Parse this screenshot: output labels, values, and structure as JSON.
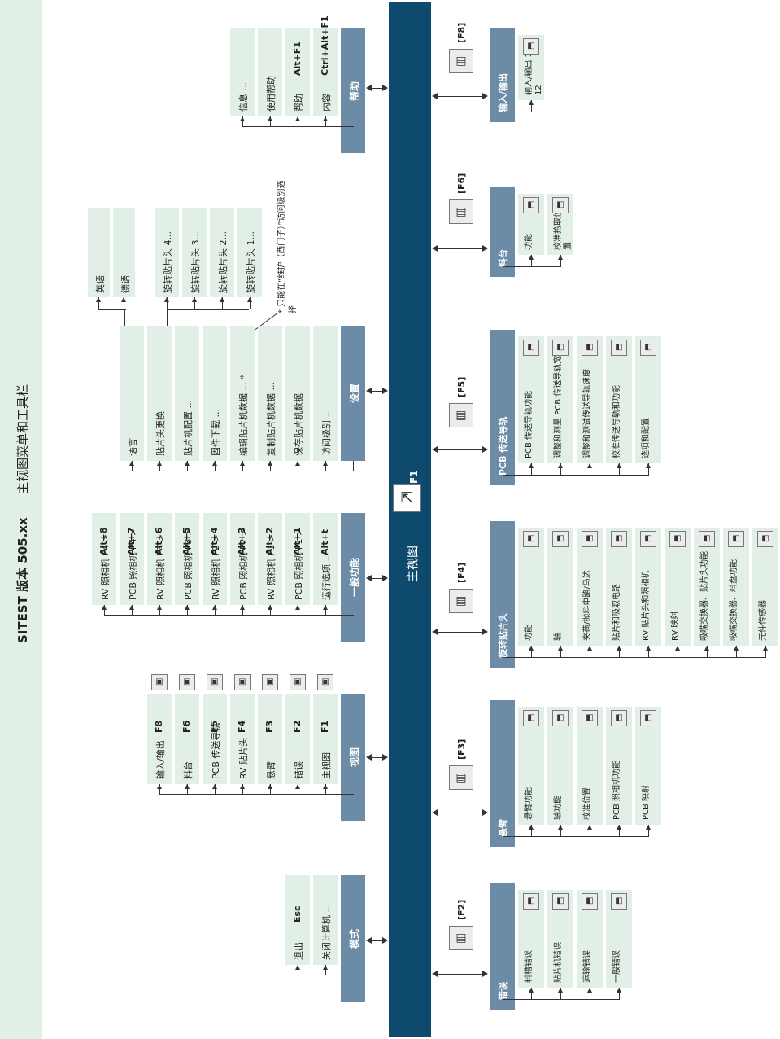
{
  "title": {
    "product": "SITEST 版本 505.xx",
    "subtitle": "主视图菜单和工具栏"
  },
  "main_view": {
    "label": "主视图",
    "key": "F1"
  },
  "menus": {
    "mode": {
      "header": "模式",
      "items": [
        {
          "label": "退出",
          "shortcut": "Esc"
        },
        {
          "label": "关闭计算机 ...",
          "shortcut": ""
        }
      ]
    },
    "view": {
      "header": "视图",
      "items": [
        {
          "label": "输入/输出",
          "shortcut": "F8",
          "icon": "io-icon"
        },
        {
          "label": "料台",
          "shortcut": "F6",
          "icon": "feeder-table-icon"
        },
        {
          "label": "PCB 传送导轨",
          "shortcut": "F5",
          "icon": "conveyor-icon"
        },
        {
          "label": "RV 贴片头",
          "shortcut": "F4",
          "icon": "placement-head-icon"
        },
        {
          "label": "悬臂",
          "shortcut": "F3",
          "icon": "gantry-icon"
        },
        {
          "label": "错误",
          "shortcut": "F2",
          "icon": "error-icon"
        },
        {
          "label": "主视图",
          "shortcut": "F1",
          "icon": "main-view-icon"
        }
      ]
    },
    "general": {
      "header": "一般功能",
      "items": [
        {
          "label": "RV 照相机 P4 >",
          "shortcut": "Alt+8"
        },
        {
          "label": "PCB 照相机 P4 >",
          "shortcut": "Alt+7"
        },
        {
          "label": "RV 照相机 P3 >",
          "shortcut": "Alt+6"
        },
        {
          "label": "PCB 照相机 P3 >",
          "shortcut": "Alt+5"
        },
        {
          "label": "RV 照相机 P2 >",
          "shortcut": "Alt+4"
        },
        {
          "label": "PCB 照相机 P2 >",
          "shortcut": "Alt+3"
        },
        {
          "label": "RV 照相机 P1 >",
          "shortcut": "Alt+2"
        },
        {
          "label": "PCB 照相机 P1 >",
          "shortcut": "Alt+1"
        },
        {
          "label": "运行选项 ...",
          "shortcut": "Alt+t"
        }
      ]
    },
    "settings": {
      "header": "设置",
      "items": [
        {
          "label": "语言"
        },
        {
          "label": "贴片头更换"
        },
        {
          "label": "贴片机配置 ..."
        },
        {
          "label": "固件下载 ..."
        },
        {
          "label": "编辑贴片机数据 ... *"
        },
        {
          "label": "复制贴片机数据 ..."
        },
        {
          "label": "保存贴片机数据"
        },
        {
          "label": "访问级别 ..."
        }
      ],
      "languages": [
        "英语",
        "德语"
      ],
      "head_swap": [
        "旋转贴片头 4...",
        "旋转贴片头 3...",
        "旋转贴片头 2...",
        "旋转贴片头 1..."
      ],
      "note": "* 只能在“维护（西门子）”访问级别选择"
    },
    "help": {
      "header": "帮助",
      "items": [
        {
          "label": "信息 ...",
          "shortcut": ""
        },
        {
          "label": "使用帮助",
          "shortcut": ""
        },
        {
          "label": "帮助",
          "shortcut": "Alt+F1"
        },
        {
          "label": "内容",
          "shortcut": "Ctrl+Alt+F1"
        }
      ]
    }
  },
  "toolbars": {
    "f2": {
      "key": "[F2]",
      "header": "错误",
      "tool_icon": "error-icon",
      "items": [
        {
          "label": "料槽错误",
          "icon": "feeder-error-icon"
        },
        {
          "label": "贴片机错误",
          "icon": "machine-error-icon"
        },
        {
          "label": "运输错误",
          "icon": "transport-error-icon"
        },
        {
          "label": "一般错误",
          "icon": "general-error-icon"
        }
      ]
    },
    "f3": {
      "key": "[F3]",
      "header": "悬臂",
      "tool_icon": "gantry-icon",
      "items": [
        {
          "label": "悬臂功能",
          "icon": "gantry-function-icon"
        },
        {
          "label": "轴功能",
          "icon": "axis-function-icon"
        },
        {
          "label": "校准位置",
          "icon": "calibration-position-icon"
        },
        {
          "label": "PCB 照相机功能",
          "icon": "pcb-camera-icon"
        },
        {
          "label": "PCB 映射",
          "icon": "pcb-mapping-icon"
        }
      ]
    },
    "f4": {
      "key": "[F4]",
      "header": "旋转贴片头",
      "tool_icon": "placement-head-icon",
      "items": [
        {
          "label": "功能",
          "icon": "function-icon"
        },
        {
          "label": "轴",
          "icon": "axis-icon"
        },
        {
          "label": "夹荷/抛料电路/马达",
          "icon": "gripper-motor-icon"
        },
        {
          "label": "贴片和吸取电路",
          "icon": "pick-place-circuit-icon"
        },
        {
          "label": "RV 贴片头和照相机",
          "icon": "head-camera-icon"
        },
        {
          "label": "RV 映射",
          "icon": "rv-mapping-icon"
        },
        {
          "label": "吸嘴交换器、贴片头功能",
          "icon": "nozzle-changer-icon"
        },
        {
          "label": "吸嘴交换器、料盘功能",
          "icon": "nozzle-tray-icon"
        },
        {
          "label": "元件传感器",
          "icon": "component-sensor-icon"
        }
      ]
    },
    "f5": {
      "key": "[F5]",
      "header": "PCB 传送导轨",
      "tool_icon": "conveyor-icon",
      "items": [
        {
          "label": "PCB 传送导轨功能",
          "icon": "conveyor-function-icon"
        },
        {
          "label": "调整和测量 PCB 传送导轨宽度",
          "icon": "conveyor-width-icon"
        },
        {
          "label": "调整和测试传送导轨速度",
          "icon": "conveyor-speed-icon"
        },
        {
          "label": "校准传送导轨和功能",
          "icon": "conveyor-calibrate-icon"
        },
        {
          "label": "选项和配置",
          "icon": "options-icon"
        }
      ]
    },
    "f6": {
      "key": "[F6]",
      "header": "料台",
      "tool_icon": "feeder-table-icon",
      "items": [
        {
          "label": "功能",
          "icon": "table-function-icon"
        },
        {
          "label": "校准拾取位置",
          "icon": "pickup-calibrate-icon"
        }
      ]
    },
    "f8": {
      "key": "[F8]",
      "header": "输入/输出",
      "tool_icon": "io-icon",
      "items": [
        {
          "label": "输入/输出 1 - 12",
          "icon": "io-channel-icon"
        }
      ]
    }
  },
  "colors": {
    "main_bar": "#0e4a6e",
    "header": "#6b8ba6",
    "item": "#e1efe6",
    "title_band": "#e1efe6"
  }
}
